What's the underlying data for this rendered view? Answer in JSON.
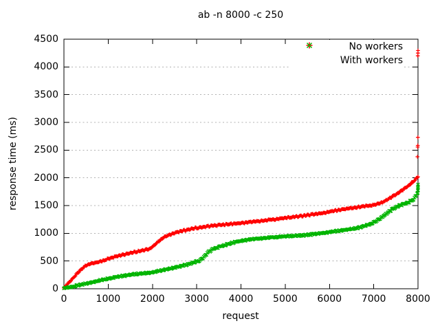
{
  "window": {
    "background": "#ffffff"
  },
  "chart_data": {
    "type": "scatter",
    "title": "ab -n 8000 -c 250",
    "xlabel": "request",
    "ylabel": "response time (ms)",
    "xlim": [
      0,
      8000
    ],
    "ylim": [
      0,
      4500
    ],
    "xticks": [
      0,
      1000,
      2000,
      3000,
      4000,
      5000,
      6000,
      7000,
      8000
    ],
    "yticks": [
      0,
      500,
      1000,
      1500,
      2000,
      2500,
      3000,
      3500,
      4000,
      4500
    ],
    "grid": {
      "horizontal": true,
      "vertical": false,
      "style": "dashed",
      "color": "#b0b0b0"
    },
    "legend": {
      "position": "top-right-inside"
    },
    "axis_color": "#000000",
    "series": [
      {
        "name": "No workers",
        "marker": "plus",
        "color": "#ff0000",
        "points": [
          [
            0,
            15
          ],
          [
            100,
            100
          ],
          [
            200,
            190
          ],
          [
            300,
            275
          ],
          [
            400,
            355
          ],
          [
            500,
            420
          ],
          [
            600,
            452
          ],
          [
            700,
            470
          ],
          [
            800,
            487
          ],
          [
            900,
            507
          ],
          [
            1000,
            543
          ],
          [
            1200,
            585
          ],
          [
            1400,
            625
          ],
          [
            1600,
            660
          ],
          [
            1800,
            695
          ],
          [
            1950,
            725
          ],
          [
            2050,
            790
          ],
          [
            2150,
            860
          ],
          [
            2250,
            925
          ],
          [
            2350,
            965
          ],
          [
            2500,
            1008
          ],
          [
            2700,
            1048
          ],
          [
            2900,
            1083
          ],
          [
            3100,
            1110
          ],
          [
            3300,
            1130
          ],
          [
            3500,
            1147
          ],
          [
            3700,
            1162
          ],
          [
            4000,
            1184
          ],
          [
            4300,
            1210
          ],
          [
            4600,
            1238
          ],
          [
            4900,
            1266
          ],
          [
            5200,
            1296
          ],
          [
            5500,
            1326
          ],
          [
            5800,
            1358
          ],
          [
            6100,
            1404
          ],
          [
            6400,
            1444
          ],
          [
            6700,
            1477
          ],
          [
            7000,
            1510
          ],
          [
            7200,
            1560
          ],
          [
            7400,
            1650
          ],
          [
            7600,
            1750
          ],
          [
            7800,
            1870
          ],
          [
            7930,
            1960
          ],
          [
            8000,
            2020
          ]
        ],
        "outliers": [
          [
            7988,
            2380
          ],
          [
            7992,
            2555
          ],
          [
            7995,
            2585
          ],
          [
            7997,
            2730
          ],
          [
            7996,
            4200
          ],
          [
            7999,
            4250
          ],
          [
            8000,
            4295
          ]
        ]
      },
      {
        "name": "With workers",
        "marker": "cross",
        "color": "#00b400",
        "points": [
          [
            0,
            8
          ],
          [
            200,
            40
          ],
          [
            400,
            75
          ],
          [
            600,
            110
          ],
          [
            800,
            148
          ],
          [
            1000,
            183
          ],
          [
            1200,
            212
          ],
          [
            1400,
            240
          ],
          [
            1600,
            262
          ],
          [
            1800,
            279
          ],
          [
            2000,
            294
          ],
          [
            2200,
            330
          ],
          [
            2400,
            367
          ],
          [
            2600,
            399
          ],
          [
            2800,
            440
          ],
          [
            3000,
            490
          ],
          [
            3080,
            518
          ],
          [
            3160,
            575
          ],
          [
            3260,
            660
          ],
          [
            3360,
            712
          ],
          [
            3500,
            752
          ],
          [
            3700,
            803
          ],
          [
            3900,
            848
          ],
          [
            4100,
            876
          ],
          [
            4300,
            897
          ],
          [
            4500,
            913
          ],
          [
            4700,
            927
          ],
          [
            4900,
            939
          ],
          [
            5100,
            949
          ],
          [
            5300,
            959
          ],
          [
            5500,
            971
          ],
          [
            5700,
            989
          ],
          [
            5900,
            1011
          ],
          [
            6100,
            1033
          ],
          [
            6300,
            1054
          ],
          [
            6500,
            1077
          ],
          [
            6700,
            1108
          ],
          [
            6900,
            1158
          ],
          [
            7050,
            1218
          ],
          [
            7200,
            1300
          ],
          [
            7350,
            1395
          ],
          [
            7500,
            1470
          ],
          [
            7650,
            1520
          ],
          [
            7800,
            1565
          ],
          [
            7900,
            1615
          ],
          [
            7960,
            1680
          ],
          [
            8000,
            1780
          ]
        ],
        "outliers": [
          [
            7994,
            1730
          ],
          [
            7997,
            1770
          ],
          [
            7998,
            1815
          ],
          [
            8000,
            1845
          ],
          [
            8000,
            1880
          ]
        ]
      }
    ]
  }
}
